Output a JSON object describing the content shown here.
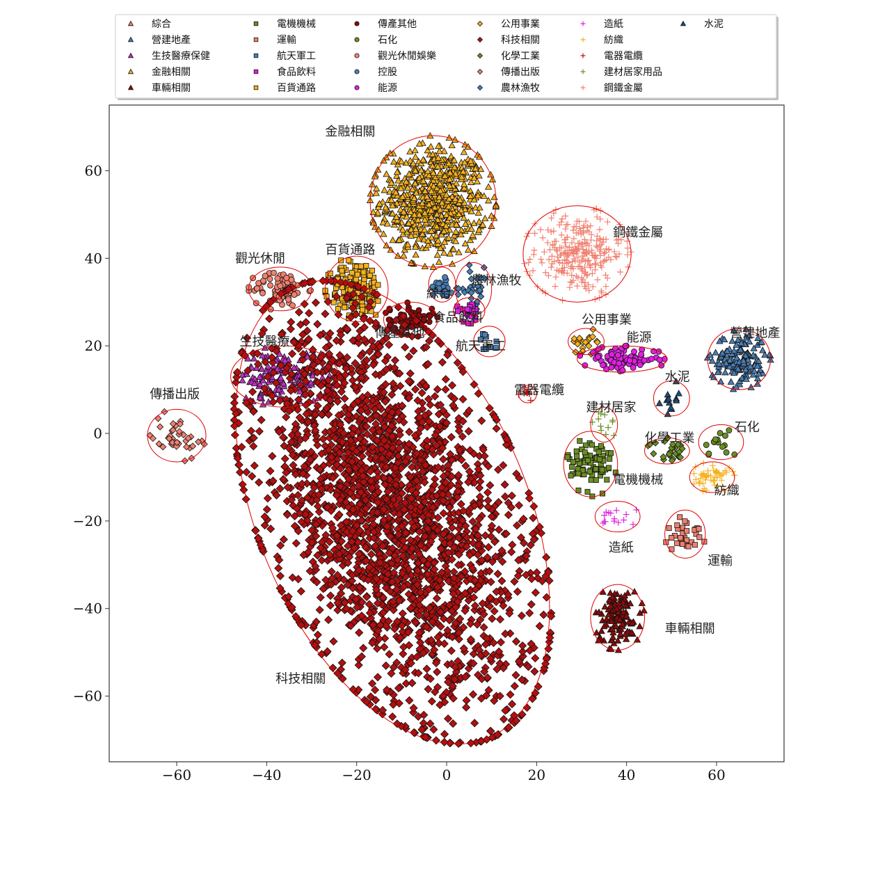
{
  "chart_data": {
    "type": "scatter",
    "title": "",
    "xlabel": "",
    "ylabel": "",
    "xlim": [
      -75,
      75
    ],
    "ylim": [
      -75,
      75
    ],
    "x_ticks": [
      -60,
      -40,
      -20,
      0,
      20,
      40,
      60
    ],
    "y_ticks": [
      60,
      40,
      20,
      0,
      -20,
      -40,
      -60
    ],
    "grid": false,
    "legend_position": "top",
    "legend_columns": 6,
    "series": [
      {
        "name": "綜合",
        "marker": "triangle",
        "color": "#f08070"
      },
      {
        "name": "營建地產",
        "marker": "triangle",
        "color": "#4a7fb5"
      },
      {
        "name": "生技醫療保健",
        "marker": "triangle",
        "color": "#c032c0"
      },
      {
        "name": "金融相關",
        "marker": "triangle",
        "color": "#f5b120"
      },
      {
        "name": "車輛相關",
        "marker": "triangle",
        "color": "#8b0a0a"
      },
      {
        "name": "電機機械",
        "marker": "square",
        "color": "#6b8e23"
      },
      {
        "name": "運輸",
        "marker": "square",
        "color": "#f08070"
      },
      {
        "name": "航天軍工",
        "marker": "square",
        "color": "#4a7fb5"
      },
      {
        "name": "食品飲料",
        "marker": "square",
        "color": "#e020e0"
      },
      {
        "name": "百貨通路",
        "marker": "square",
        "color": "#f5b120"
      },
      {
        "name": "傳產其他",
        "marker": "circle",
        "color": "#8b0a0a"
      },
      {
        "name": "石化",
        "marker": "circle",
        "color": "#6b8e23"
      },
      {
        "name": "觀光休閒娛樂",
        "marker": "circle",
        "color": "#f08070"
      },
      {
        "name": "控股",
        "marker": "circle",
        "color": "#4a7fb5"
      },
      {
        "name": "能源",
        "marker": "circle",
        "color": "#e020e0"
      },
      {
        "name": "公用事業",
        "marker": "diamond",
        "color": "#f5b120"
      },
      {
        "name": "科技相關",
        "marker": "diamond",
        "color": "#b01010"
      },
      {
        "name": "化學工業",
        "marker": "diamond",
        "color": "#6b8e23"
      },
      {
        "name": "傳播出版",
        "marker": "diamond",
        "color": "#f08070"
      },
      {
        "name": "農林漁牧",
        "marker": "diamond",
        "color": "#4a7fb5"
      },
      {
        "name": "造紙",
        "marker": "plus",
        "color": "#e020e0"
      },
      {
        "name": "紡織",
        "marker": "plus",
        "color": "#f5b120"
      },
      {
        "name": "電器電纜",
        "marker": "plus",
        "color": "#c01010"
      },
      {
        "name": "建材居家用品",
        "marker": "plus",
        "color": "#6b8e23"
      },
      {
        "name": "鋼鐵金屬",
        "marker": "plus",
        "color": "#f08070"
      },
      {
        "name": "水泥",
        "marker": "triangle",
        "color": "#1f4e79"
      }
    ],
    "clusters": [
      {
        "label": "金融相關",
        "series": "金融相關",
        "cx": -3,
        "cy": 53,
        "rx": 14,
        "ry": 15,
        "n": 650,
        "label_x": -27,
        "label_y": 68
      },
      {
        "label": "鋼鐵金屬",
        "series": "鋼鐵金屬",
        "cx": 29,
        "cy": 41,
        "rx": 12,
        "ry": 11,
        "n": 260,
        "label_x": 37,
        "label_y": 45
      },
      {
        "label": "觀光休閒",
        "series": "觀光休閒娛樂",
        "cx": -37,
        "cy": 33,
        "rx": 7,
        "ry": 5,
        "n": 70,
        "label_x": -47,
        "label_y": 39
      },
      {
        "label": "百貨通路",
        "series": "百貨通路",
        "cx": -20,
        "cy": 33,
        "rx": 7,
        "ry": 7.5,
        "n": 160,
        "label_x": -27,
        "label_y": 41
      },
      {
        "label": "綜合",
        "series": "控股",
        "cx": -1,
        "cy": 34,
        "rx": 3,
        "ry": 4,
        "n": 20,
        "label_x": -4.5,
        "label_y": 31
      },
      {
        "label": "農林漁牧",
        "series": "農林漁牧",
        "cx": 6,
        "cy": 33,
        "rx": 4,
        "ry": 6,
        "n": 30,
        "label_x": 5.5,
        "label_y": 34
      },
      {
        "label": "食品飲料",
        "series": "食品飲料",
        "cx": 5,
        "cy": 28,
        "rx": 3.5,
        "ry": 3,
        "n": 25,
        "label_x": -3,
        "label_y": 25.5
      },
      {
        "label": "傳產其他",
        "series": "傳產其他",
        "cx": -8,
        "cy": 26,
        "rx": 6,
        "ry": 4,
        "n": 60,
        "label_x": -16,
        "label_y": 22
      },
      {
        "label": "航天軍工",
        "series": "航天軍工",
        "cx": 9.5,
        "cy": 21,
        "rx": 3.5,
        "ry": 3.5,
        "n": 10,
        "label_x": 2,
        "label_y": 19
      },
      {
        "label": "公用事業",
        "series": "公用事業",
        "cx": 31,
        "cy": 21,
        "rx": 4,
        "ry": 3,
        "n": 20,
        "label_x": 30,
        "label_y": 25
      },
      {
        "label": "能源",
        "series": "能源",
        "cx": 39,
        "cy": 17,
        "rx": 10,
        "ry": 3,
        "n": 90,
        "label_x": 40,
        "label_y": 21
      },
      {
        "label": "營建地產",
        "series": "營建地產",
        "cx": 65,
        "cy": 17,
        "rx": 7,
        "ry": 7,
        "n": 150,
        "label_x": 63,
        "label_y": 22
      },
      {
        "label": "生技醫療",
        "series": "生技醫療保健",
        "cx": -36,
        "cy": 13,
        "rx": 12,
        "ry": 7,
        "n": 150,
        "label_x": -46,
        "label_y": 20
      },
      {
        "label": "水泥",
        "series": "水泥",
        "cx": 50,
        "cy": 8,
        "rx": 4,
        "ry": 4,
        "n": 12,
        "label_x": 48.5,
        "label_y": 12
      },
      {
        "label": "電器電纜",
        "series": "電器電纜",
        "cx": 18,
        "cy": 9,
        "rx": 2,
        "ry": 2,
        "n": 10,
        "label_x": 15,
        "label_y": 9
      },
      {
        "label": "傳播出版",
        "series": "傳播出版",
        "cx": -60,
        "cy": -0.5,
        "rx": 6.5,
        "ry": 6,
        "n": 40,
        "label_x": -66,
        "label_y": 8
      },
      {
        "label": "建材居家",
        "series": "建材居家用品",
        "cx": 35,
        "cy": 2,
        "rx": 3,
        "ry": 4,
        "n": 12,
        "label_x": 31,
        "label_y": 5
      },
      {
        "label": "化學工業",
        "series": "化學工業",
        "cx": 49,
        "cy": -4,
        "rx": 5,
        "ry": 3,
        "n": 25,
        "label_x": 44,
        "label_y": -2
      },
      {
        "label": "石化",
        "series": "石化",
        "cx": 61,
        "cy": -2,
        "rx": 5,
        "ry": 4,
        "n": 15,
        "label_x": 64,
        "label_y": 0.5
      },
      {
        "label": "電機機械",
        "series": "電機機械",
        "cx": 32,
        "cy": -7,
        "rx": 6,
        "ry": 7.5,
        "n": 80,
        "label_x": 37,
        "label_y": -11.5
      },
      {
        "label": "紡織",
        "series": "紡織",
        "cx": 59,
        "cy": -10,
        "rx": 5,
        "ry": 3.5,
        "n": 50,
        "label_x": 59.5,
        "label_y": -14
      },
      {
        "label": "造紙",
        "series": "造紙",
        "cx": 38,
        "cy": -19,
        "rx": 5,
        "ry": 3.5,
        "n": 15,
        "label_x": 36,
        "label_y": -27
      },
      {
        "label": "運輸",
        "series": "運輸",
        "cx": 53,
        "cy": -23,
        "rx": 4.5,
        "ry": 5.5,
        "n": 30,
        "label_x": 58,
        "label_y": -30
      },
      {
        "label": "車輛相關",
        "series": "車輛相關",
        "cx": 38,
        "cy": -42,
        "rx": 6,
        "ry": 7.5,
        "n": 120,
        "label_x": 48.5,
        "label_y": -45.5
      },
      {
        "label": "科技相關",
        "series": "科技相關",
        "cx": -12,
        "cy": -18,
        "rx": 30,
        "ry": 56,
        "rotation": 23,
        "n": 2600,
        "label_x": -38,
        "label_y": -57
      }
    ]
  }
}
